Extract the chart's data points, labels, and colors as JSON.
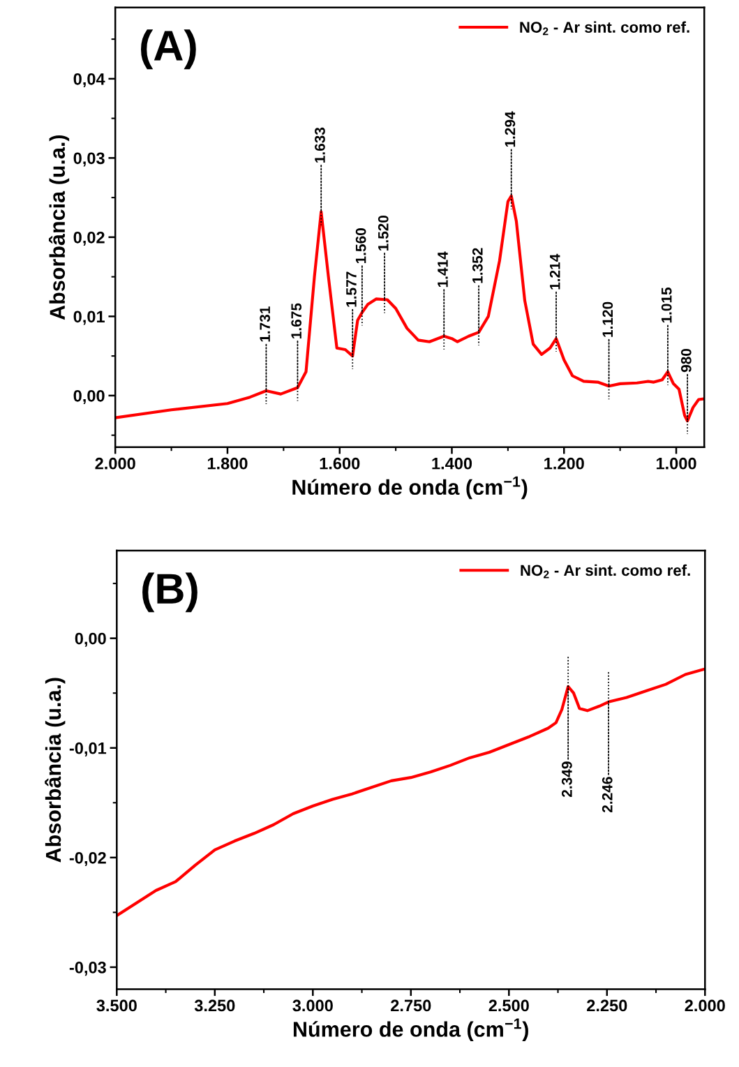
{
  "chart_data": [
    {
      "type": "line",
      "xlabel": "Número de onda (cm$^{−1}$)",
      "ylabel": "Absorbância (u.a.)",
      "legend": "top right",
      "grid": false,
      "marker": "none",
      "line_style": "solid",
      "annotations": [
        "(A)",
        {
          "text": "1.731",
          "x": 1731,
          "y": 0.0006
        },
        {
          "text": "1.675",
          "x": 1675,
          "y": 0.001
        },
        {
          "text": "1.633",
          "x": 1633,
          "y": 0.0232
        },
        {
          "text": "1.577",
          "x": 1577,
          "y": 0.005
        },
        {
          "text": "1.560",
          "x": 1560,
          "y": 0.0105
        },
        {
          "text": "1.520",
          "x": 1520,
          "y": 0.0121
        },
        {
          "text": "1.414",
          "x": 1414,
          "y": 0.0075
        },
        {
          "text": "1.352",
          "x": 1352,
          "y": 0.008
        },
        {
          "text": "1.294",
          "x": 1294,
          "y": 0.0252
        },
        {
          "text": "1.214",
          "x": 1214,
          "y": 0.0072
        },
        {
          "text": "1.120",
          "x": 1120,
          "y": 0.0012
        },
        {
          "text": "1.015",
          "x": 1015,
          "y": 0.003
        },
        {
          "text": "980",
          "x": 980,
          "y": -0.0032
        }
      ],
      "xlim": [
        2000,
        950
      ],
      "ylim": [
        -0.0065,
        0.049
      ],
      "xticks": [
        {
          "value": 2000,
          "label": "2.000"
        },
        {
          "value": 1900,
          "label": null
        },
        {
          "value": 1800,
          "label": "1.800"
        },
        {
          "value": 1700,
          "label": null
        },
        {
          "value": 1600,
          "label": "1.600"
        },
        {
          "value": 1500,
          "label": null
        },
        {
          "value": 1400,
          "label": "1.400"
        },
        {
          "value": 1300,
          "label": null
        },
        {
          "value": 1200,
          "label": "1.200"
        },
        {
          "value": 1100,
          "label": null
        },
        {
          "value": 1000,
          "label": "1.000"
        }
      ],
      "yticks": [
        {
          "value": -0.005,
          "label": null
        },
        {
          "value": 0.0,
          "label": "0,00"
        },
        {
          "value": 0.005,
          "label": null
        },
        {
          "value": 0.01,
          "label": "0,01"
        },
        {
          "value": 0.015,
          "label": null
        },
        {
          "value": 0.02,
          "label": "0,02"
        },
        {
          "value": 0.025,
          "label": null
        },
        {
          "value": 0.03,
          "label": "0,03"
        },
        {
          "value": 0.035,
          "label": null
        },
        {
          "value": 0.04,
          "label": "0,04"
        },
        {
          "value": 0.045,
          "label": null
        }
      ],
      "series": [
        {
          "name": "NO$_{2}$ - Ar sint. como ref.",
          "color": "#ff0000",
          "x": [
            2000,
            1900,
            1800,
            1760,
            1731,
            1705,
            1675,
            1660,
            1645,
            1633,
            1620,
            1605,
            1590,
            1577,
            1568,
            1560,
            1550,
            1535,
            1515,
            1500,
            1480,
            1460,
            1440,
            1414,
            1400,
            1390,
            1370,
            1352,
            1335,
            1315,
            1300,
            1294,
            1285,
            1270,
            1255,
            1240,
            1225,
            1214,
            1200,
            1185,
            1165,
            1140,
            1120,
            1100,
            1070,
            1050,
            1040,
            1025,
            1015,
            1005,
            995,
            985,
            980,
            970,
            960,
            950
          ],
          "values": [
            -0.0028,
            -0.0018,
            -0.001,
            -0.0002,
            0.0006,
            0.0002,
            0.001,
            0.003,
            0.015,
            0.0232,
            0.015,
            0.006,
            0.0058,
            0.005,
            0.0095,
            0.0105,
            0.0115,
            0.0122,
            0.0121,
            0.011,
            0.0085,
            0.007,
            0.0068,
            0.0075,
            0.0072,
            0.0068,
            0.0075,
            0.008,
            0.01,
            0.017,
            0.0245,
            0.0252,
            0.022,
            0.012,
            0.0065,
            0.0052,
            0.006,
            0.0072,
            0.0045,
            0.0025,
            0.0018,
            0.0017,
            0.0012,
            0.0015,
            0.0016,
            0.0018,
            0.0017,
            0.002,
            0.003,
            0.0015,
            0.0008,
            -0.0025,
            -0.0032,
            -0.0015,
            -0.0005,
            -0.0004
          ]
        }
      ]
    },
    {
      "type": "line",
      "xlabel": "Número de onda (cm$^{−1}$)",
      "ylabel": "Absorbância (u.a.)",
      "legend": "top right",
      "grid": false,
      "marker": "none",
      "line_style": "solid",
      "annotations": [
        "(B)",
        {
          "text": "2.349",
          "x": 2349,
          "y": -0.0044
        },
        {
          "text": "2.246",
          "x": 2246,
          "y": -0.0058
        }
      ],
      "xlim": [
        3500,
        2000
      ],
      "ylim": [
        -0.032,
        0.008
      ],
      "xticks": [
        {
          "value": 3500,
          "label": "3.500"
        },
        {
          "value": 3375,
          "label": null
        },
        {
          "value": 3250,
          "label": "3.250"
        },
        {
          "value": 3125,
          "label": null
        },
        {
          "value": 3000,
          "label": "3.000"
        },
        {
          "value": 2875,
          "label": null
        },
        {
          "value": 2750,
          "label": "2.750"
        },
        {
          "value": 2625,
          "label": null
        },
        {
          "value": 2500,
          "label": "2.500"
        },
        {
          "value": 2375,
          "label": null
        },
        {
          "value": 2250,
          "label": "2.250"
        },
        {
          "value": 2125,
          "label": null
        },
        {
          "value": 2000,
          "label": "2.000"
        }
      ],
      "yticks": [
        {
          "value": -0.03,
          "label": "-0,03"
        },
        {
          "value": -0.025,
          "label": null
        },
        {
          "value": -0.02,
          "label": "-0,02"
        },
        {
          "value": -0.015,
          "label": null
        },
        {
          "value": -0.01,
          "label": "-0,01"
        },
        {
          "value": -0.005,
          "label": null
        },
        {
          "value": 0.0,
          "label": "0,00"
        },
        {
          "value": 0.005,
          "label": null
        }
      ],
      "series": [
        {
          "name": "NO$_{2}$ - Ar sint. como ref.",
          "color": "#ff0000",
          "x": [
            3500,
            3400,
            3350,
            3300,
            3250,
            3200,
            3150,
            3100,
            3050,
            3000,
            2950,
            2900,
            2850,
            2800,
            2750,
            2700,
            2650,
            2600,
            2550,
            2500,
            2450,
            2400,
            2380,
            2365,
            2349,
            2335,
            2320,
            2300,
            2270,
            2246,
            2200,
            2150,
            2100,
            2050,
            2000
          ],
          "values": [
            -0.0253,
            -0.023,
            -0.0222,
            -0.0207,
            -0.0193,
            -0.0185,
            -0.0178,
            -0.017,
            -0.016,
            -0.0153,
            -0.0147,
            -0.0142,
            -0.0136,
            -0.013,
            -0.0127,
            -0.0122,
            -0.0116,
            -0.0109,
            -0.0104,
            -0.0097,
            -0.009,
            -0.0082,
            -0.0077,
            -0.0065,
            -0.0044,
            -0.005,
            -0.0064,
            -0.0066,
            -0.0062,
            -0.0058,
            -0.0054,
            -0.0048,
            -0.0042,
            -0.0033,
            -0.0028
          ]
        }
      ]
    }
  ]
}
